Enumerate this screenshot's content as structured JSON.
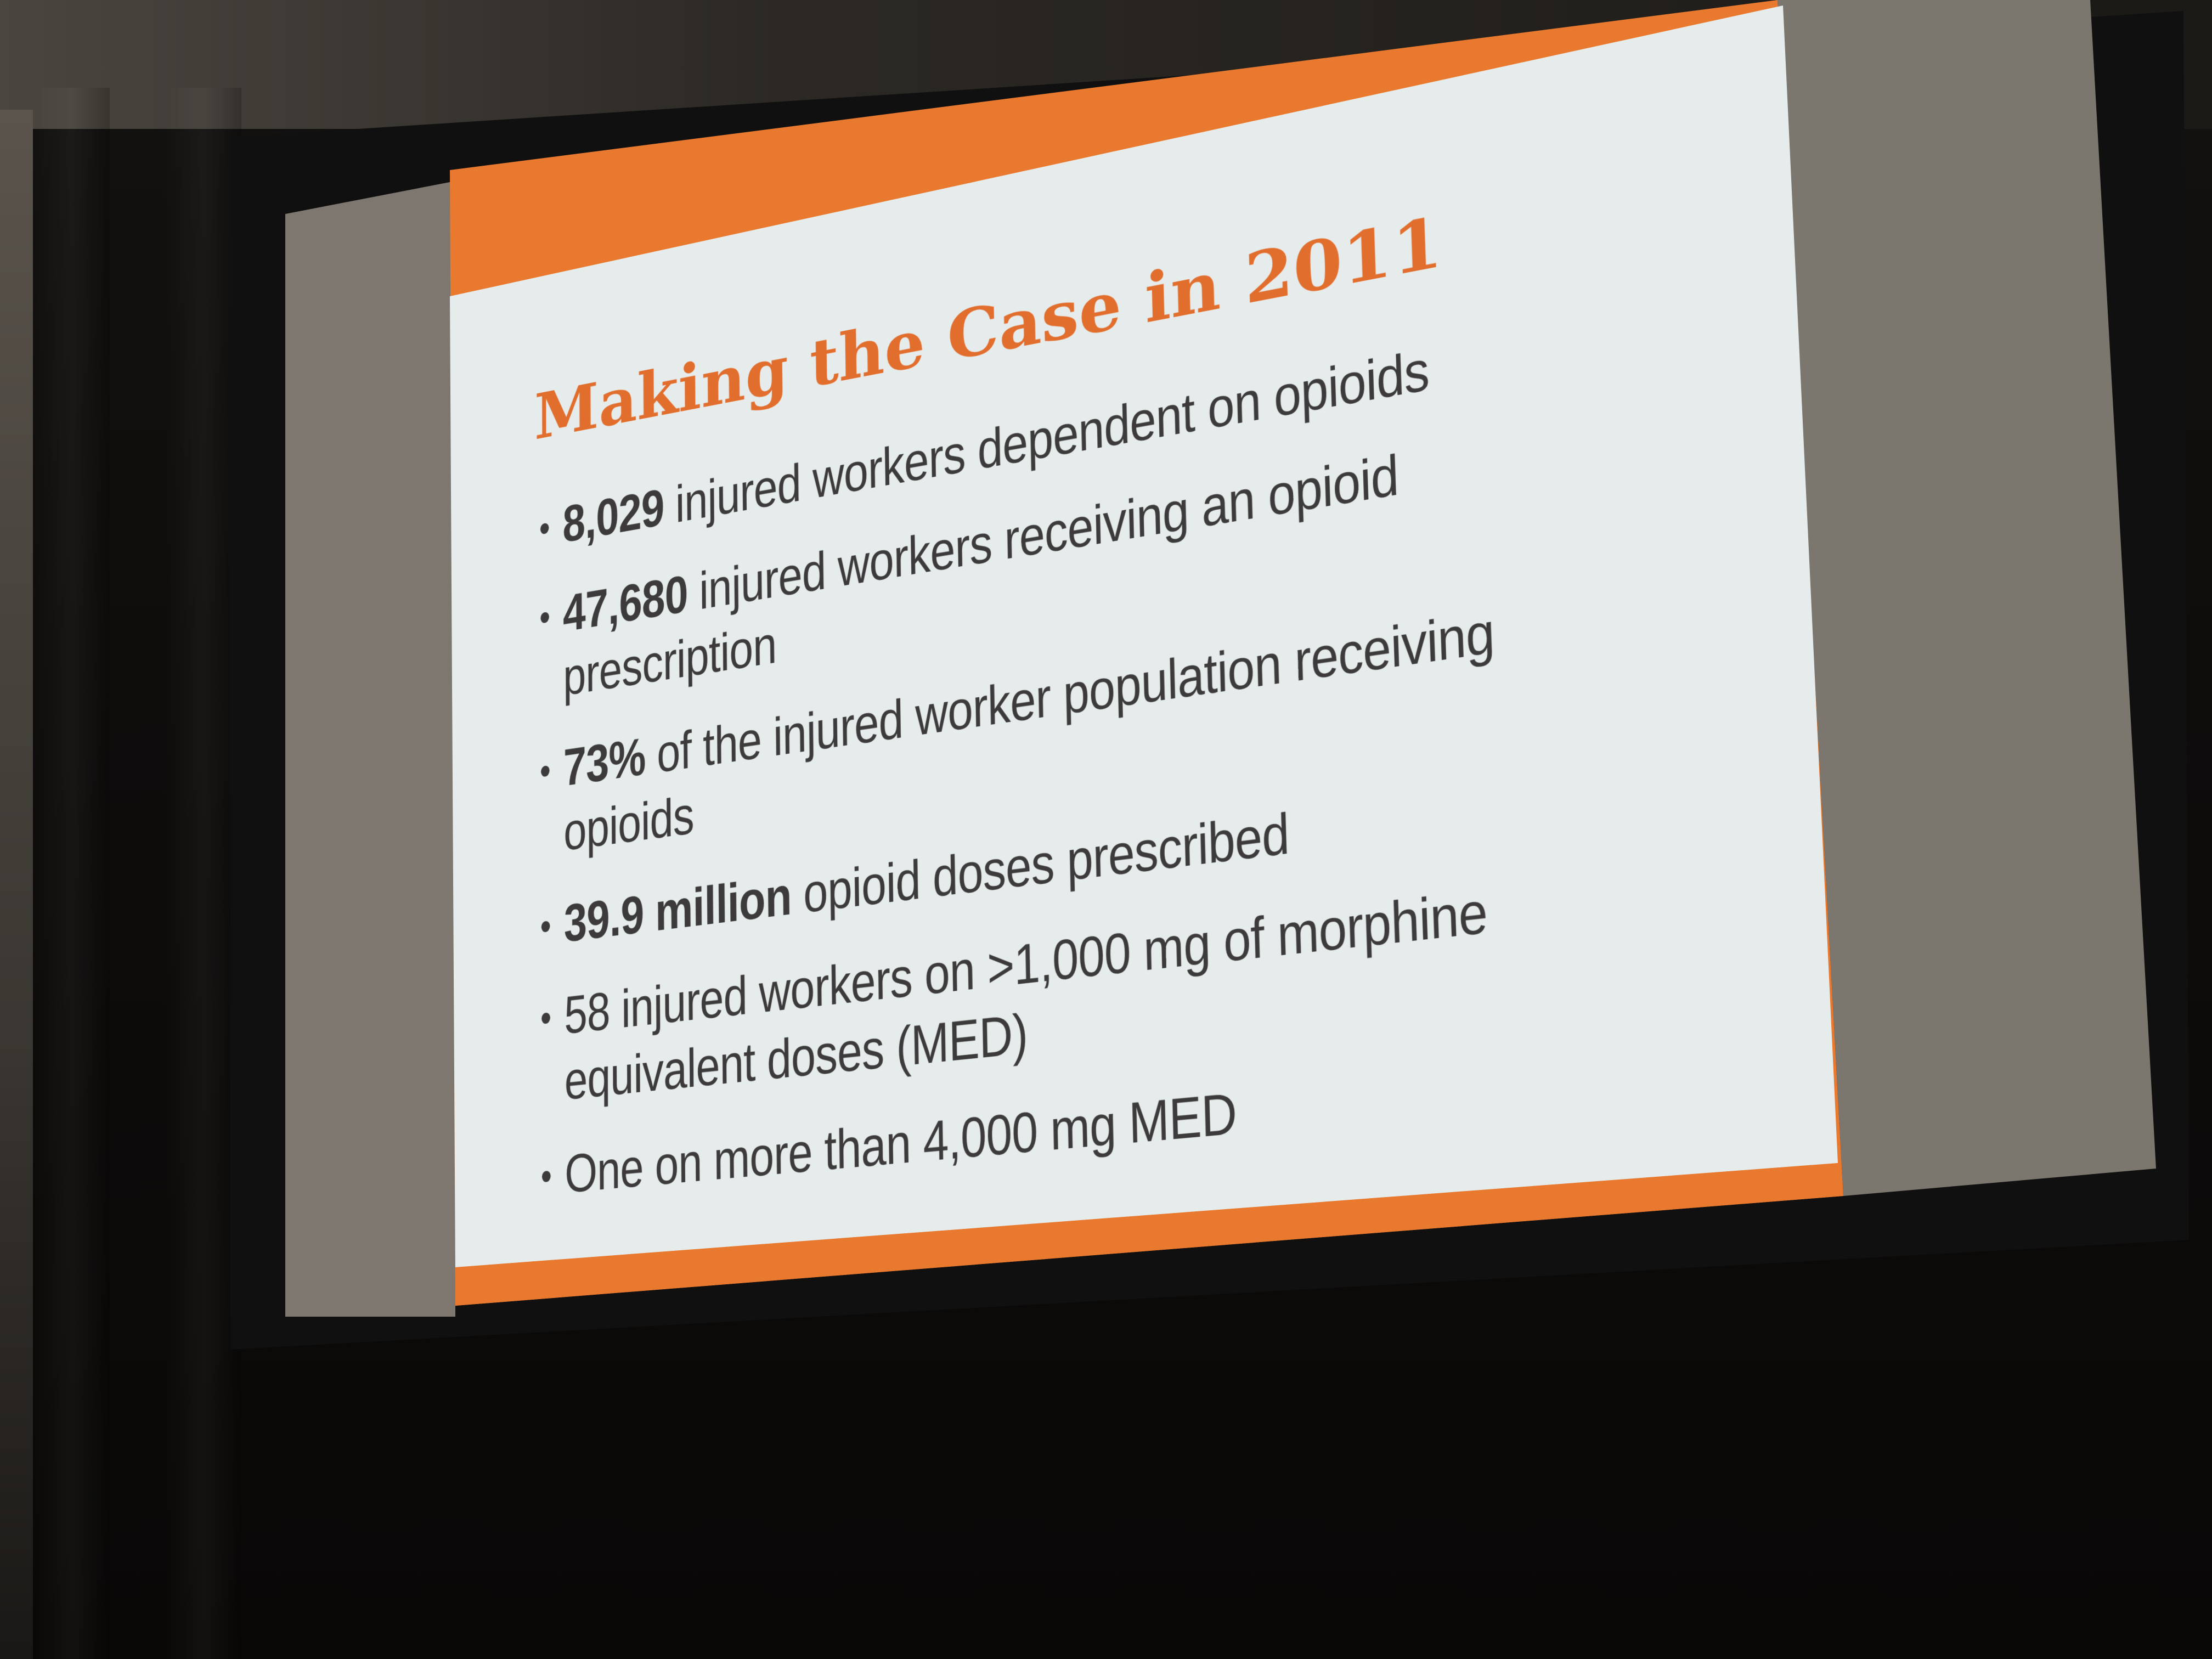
{
  "slide": {
    "title": "Making the Case in 2011",
    "bullets": [
      {
        "bold": "8,029",
        "text": " injured workers dependent on opioids",
        "cont": ""
      },
      {
        "bold": "47,680",
        "text": " injured workers receiving an opioid",
        "cont": "prescription"
      },
      {
        "bold": "73%",
        "text": " of the injured worker population receiving",
        "cont": "opioids"
      },
      {
        "bold": "39.9 million",
        "text": " opioid doses prescribed",
        "cont": ""
      },
      {
        "bold": "",
        "text": "58 injured workers on >1,000 mg of morphine",
        "cont": "equivalent doses (MED)"
      },
      {
        "bold": "",
        "text": "One on more than 4,000 mg MED",
        "cont": ""
      }
    ]
  },
  "colors": {
    "accent": "#e8792f",
    "slide_background": "#e6ecec",
    "text": "#3c3a3a"
  }
}
